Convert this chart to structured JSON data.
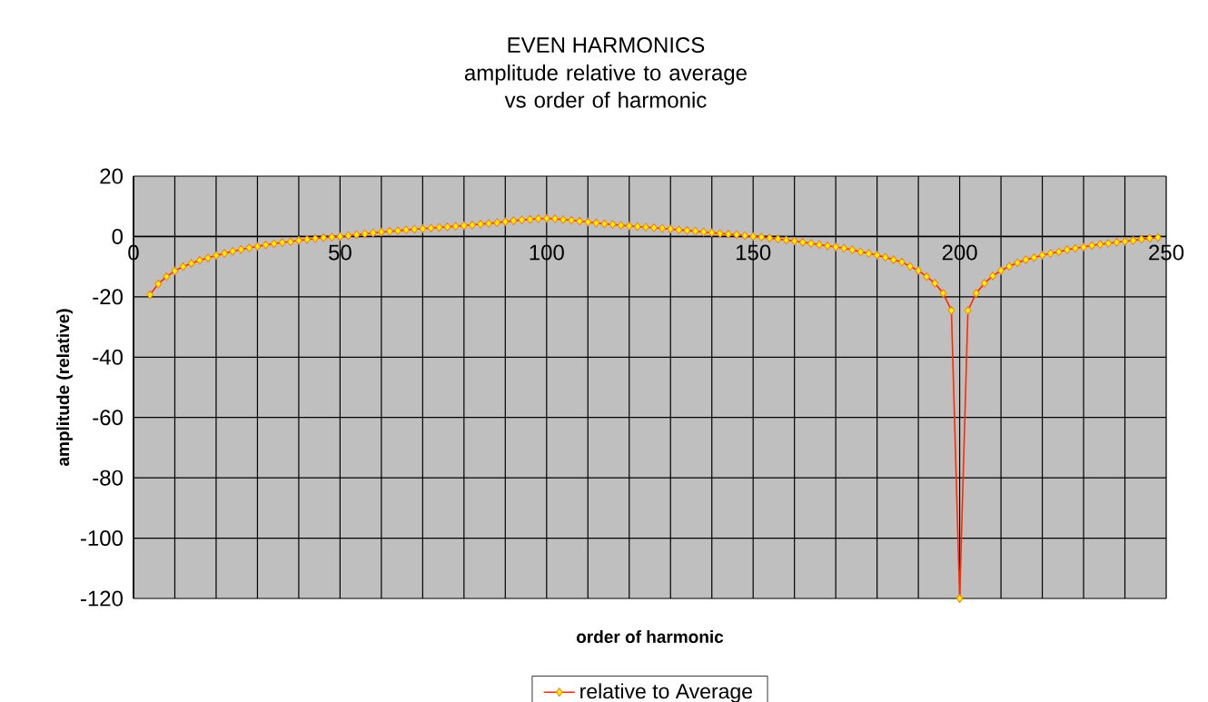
{
  "chart_data": {
    "type": "line",
    "title": "EVEN HARMONICS",
    "subtitle": "amplitude relative to average vs order of harmonic",
    "xlabel": "order of harmonic",
    "ylabel": "amplitude (relative)",
    "x": [
      4,
      6,
      8,
      10,
      12,
      14,
      16,
      18,
      20,
      22,
      24,
      26,
      28,
      30,
      32,
      34,
      36,
      38,
      40,
      42,
      44,
      46,
      48,
      50,
      52,
      54,
      56,
      58,
      60,
      62,
      64,
      66,
      68,
      70,
      72,
      74,
      76,
      78,
      80,
      82,
      84,
      86,
      88,
      90,
      92,
      94,
      96,
      98,
      100,
      102,
      104,
      106,
      108,
      110,
      112,
      114,
      116,
      118,
      120,
      122,
      124,
      126,
      128,
      130,
      132,
      134,
      136,
      138,
      140,
      142,
      144,
      146,
      148,
      150,
      152,
      154,
      156,
      158,
      160,
      162,
      164,
      166,
      168,
      170,
      172,
      174,
      176,
      178,
      180,
      182,
      184,
      186,
      188,
      190,
      192,
      194,
      196,
      198,
      200,
      202,
      204,
      206,
      208,
      210,
      212,
      214,
      216,
      218,
      220,
      222,
      224,
      226,
      228,
      230,
      232,
      234,
      236,
      238,
      240,
      242,
      244,
      246,
      248
    ],
    "series": [
      {
        "name": "relative to Average",
        "color": "#ff2a00",
        "values": [
          -19.3,
          -15.7,
          -13.3,
          -11.4,
          -10.0,
          -8.9,
          -7.9,
          -7.1,
          -6.3,
          -5.6,
          -4.9,
          -4.3,
          -3.8,
          -3.3,
          -2.8,
          -2.4,
          -2.0,
          -1.7,
          -1.3,
          -1.0,
          -0.7,
          -0.4,
          -0.2,
          0,
          0.3,
          0.6,
          0.9,
          1.2,
          1.5,
          1.7,
          1.9,
          2.2,
          2.4,
          2.6,
          2.8,
          3.0,
          3.2,
          3.4,
          3.6,
          3.8,
          4.1,
          4.3,
          4.6,
          4.9,
          5.2,
          5.5,
          5.7,
          5.9,
          6.0,
          5.9,
          5.6,
          5.4,
          5.1,
          4.8,
          4.5,
          4.2,
          4.0,
          3.7,
          3.5,
          3.3,
          3.1,
          2.9,
          2.7,
          2.5,
          2.2,
          2.0,
          1.8,
          1.5,
          1.3,
          1.0,
          0.8,
          0.6,
          0.3,
          0,
          -0.2,
          -0.5,
          -0.8,
          -1.2,
          -1.5,
          -1.9,
          -2.3,
          -2.7,
          -3.1,
          -3.5,
          -3.9,
          -4.4,
          -5.1,
          -5.6,
          -6.2,
          -6.9,
          -7.7,
          -8.5,
          -9.9,
          -11.3,
          -13.3,
          -15.5,
          -18.8,
          -24.5,
          -120,
          -24.5,
          -18.8,
          -15.5,
          -13.1,
          -11.3,
          -9.9,
          -8.7,
          -7.7,
          -7.0,
          -6.2,
          -5.6,
          -5.1,
          -4.4,
          -3.9,
          -3.5,
          -3.0,
          -2.6,
          -2.3,
          -1.9,
          -1.6,
          -1.3,
          -0.9,
          -0.6,
          -0.3
        ]
      }
    ],
    "xlim": [
      0,
      250
    ],
    "ylim": [
      -120,
      20
    ],
    "xticks": [
      0,
      {
        "value": 10,
        "label": null
      },
      {
        "value": 20,
        "label": null
      },
      {
        "value": 30,
        "label": null
      },
      {
        "value": 40,
        "label": null
      },
      50,
      {
        "value": 60,
        "label": null
      },
      {
        "value": 70,
        "label": null
      },
      {
        "value": 80,
        "label": null
      },
      {
        "value": 90,
        "label": null
      },
      100,
      {
        "value": 110,
        "label": null
      },
      {
        "value": 120,
        "label": null
      },
      {
        "value": 130,
        "label": null
      },
      {
        "value": 140,
        "label": null
      },
      150,
      {
        "value": 160,
        "label": null
      },
      {
        "value": 170,
        "label": null
      },
      {
        "value": 180,
        "label": null
      },
      {
        "value": 190,
        "label": null
      },
      200,
      {
        "value": 210,
        "label": null
      },
      {
        "value": 220,
        "label": null
      },
      {
        "value": 230,
        "label": null
      },
      {
        "value": 240,
        "label": null
      },
      250
    ],
    "yticks": [
      -120,
      -100,
      -80,
      -60,
      -40,
      -20,
      0,
      20
    ],
    "grid": true,
    "legend": "bottom",
    "marker": "diamond",
    "line_style": "solid"
  }
}
